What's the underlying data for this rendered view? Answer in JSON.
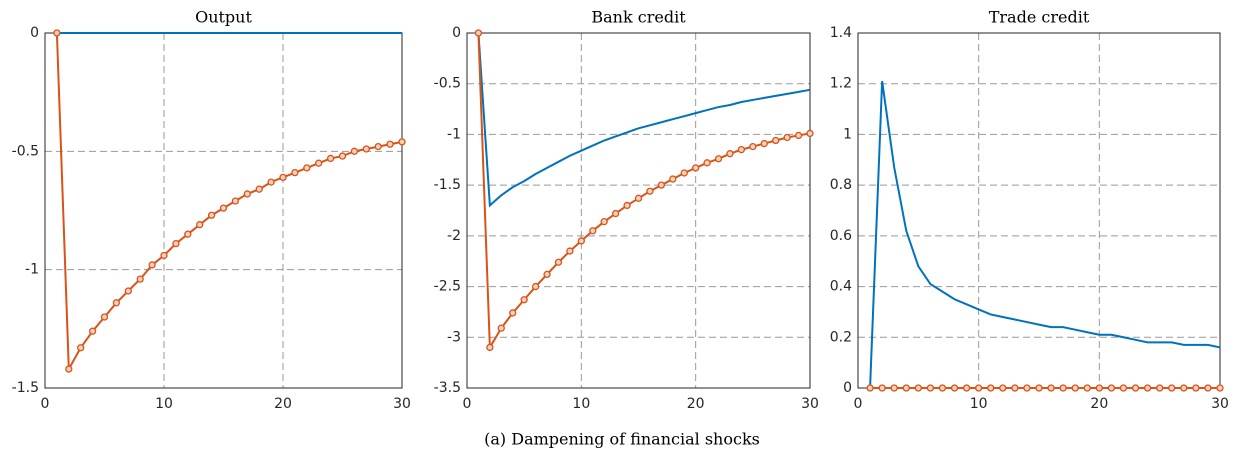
{
  "caption": "(a) Dampening of financial shocks",
  "chart_data": [
    {
      "type": "line",
      "title": "Output",
      "grid": true,
      "x": [
        1,
        2,
        3,
        4,
        5,
        6,
        7,
        8,
        9,
        10,
        11,
        12,
        13,
        14,
        15,
        16,
        17,
        18,
        19,
        20,
        21,
        22,
        23,
        24,
        25,
        26,
        27,
        28,
        29,
        30
      ],
      "xlim": [
        0,
        30
      ],
      "xticks": [
        0,
        10,
        20,
        30
      ],
      "ylim": [
        -1.5,
        0
      ],
      "yticks": [
        -1.5,
        -1,
        -0.5,
        0
      ],
      "series": [
        {
          "color": "#0072bd",
          "values": [
            0,
            0,
            0,
            0,
            0,
            0,
            0,
            0,
            0,
            0,
            0,
            0,
            0,
            0,
            0,
            0,
            0,
            0,
            0,
            0,
            0,
            0,
            0,
            0,
            0,
            0,
            0,
            0,
            0,
            0
          ]
        },
        {
          "color": "#d95319",
          "marker": "circle",
          "values": [
            0,
            -1.42,
            -1.33,
            -1.26,
            -1.2,
            -1.14,
            -1.09,
            -1.04,
            -0.98,
            -0.94,
            -0.89,
            -0.85,
            -0.81,
            -0.77,
            -0.74,
            -0.71,
            -0.68,
            -0.66,
            -0.63,
            -0.61,
            -0.59,
            -0.57,
            -0.55,
            -0.53,
            -0.52,
            -0.5,
            -0.49,
            -0.48,
            -0.47,
            -0.46
          ]
        }
      ]
    },
    {
      "type": "line",
      "title": "Bank credit",
      "grid": true,
      "x": [
        1,
        2,
        3,
        4,
        5,
        6,
        7,
        8,
        9,
        10,
        11,
        12,
        13,
        14,
        15,
        16,
        17,
        18,
        19,
        20,
        21,
        22,
        23,
        24,
        25,
        26,
        27,
        28,
        29,
        30
      ],
      "xlim": [
        0,
        30
      ],
      "xticks": [
        0,
        10,
        20,
        30
      ],
      "ylim": [
        -3.5,
        0
      ],
      "yticks": [
        -3.5,
        -3,
        -2.5,
        -2,
        -1.5,
        -1,
        -0.5,
        0
      ],
      "series": [
        {
          "color": "#0072bd",
          "values": [
            0,
            -1.7,
            -1.6,
            -1.52,
            -1.46,
            -1.39,
            -1.33,
            -1.27,
            -1.21,
            -1.16,
            -1.11,
            -1.06,
            -1.02,
            -0.98,
            -0.94,
            -0.91,
            -0.88,
            -0.85,
            -0.82,
            -0.79,
            -0.76,
            -0.73,
            -0.71,
            -0.68,
            -0.66,
            -0.64,
            -0.62,
            -0.6,
            -0.58,
            -0.56
          ]
        },
        {
          "color": "#d95319",
          "marker": "circle",
          "values": [
            0,
            -3.1,
            -2.91,
            -2.76,
            -2.63,
            -2.5,
            -2.38,
            -2.26,
            -2.15,
            -2.05,
            -1.95,
            -1.86,
            -1.78,
            -1.7,
            -1.63,
            -1.56,
            -1.5,
            -1.44,
            -1.38,
            -1.33,
            -1.28,
            -1.24,
            -1.19,
            -1.15,
            -1.12,
            -1.09,
            -1.06,
            -1.03,
            -1.01,
            -0.99
          ]
        }
      ]
    },
    {
      "type": "line",
      "title": "Trade credit",
      "grid": true,
      "x": [
        1,
        2,
        3,
        4,
        5,
        6,
        7,
        8,
        9,
        10,
        11,
        12,
        13,
        14,
        15,
        16,
        17,
        18,
        19,
        20,
        21,
        22,
        23,
        24,
        25,
        26,
        27,
        28,
        29,
        30
      ],
      "xlim": [
        0,
        30
      ],
      "xticks": [
        0,
        10,
        20,
        30
      ],
      "ylim": [
        0,
        1.4
      ],
      "yticks": [
        0,
        0.2,
        0.4,
        0.6,
        0.8,
        1,
        1.2,
        1.4
      ],
      "series": [
        {
          "color": "#0072bd",
          "values": [
            0,
            1.21,
            0.87,
            0.62,
            0.48,
            0.41,
            0.38,
            0.35,
            0.33,
            0.31,
            0.29,
            0.28,
            0.27,
            0.26,
            0.25,
            0.24,
            0.24,
            0.23,
            0.22,
            0.21,
            0.21,
            0.2,
            0.19,
            0.18,
            0.18,
            0.18,
            0.17,
            0.17,
            0.17,
            0.16
          ]
        },
        {
          "color": "#d95319",
          "marker": "circle",
          "values": [
            0,
            0,
            0,
            0,
            0,
            0,
            0,
            0,
            0,
            0,
            0,
            0,
            0,
            0,
            0,
            0,
            0,
            0,
            0,
            0,
            0,
            0,
            0,
            0,
            0,
            0,
            0,
            0,
            0,
            0
          ]
        }
      ]
    }
  ]
}
